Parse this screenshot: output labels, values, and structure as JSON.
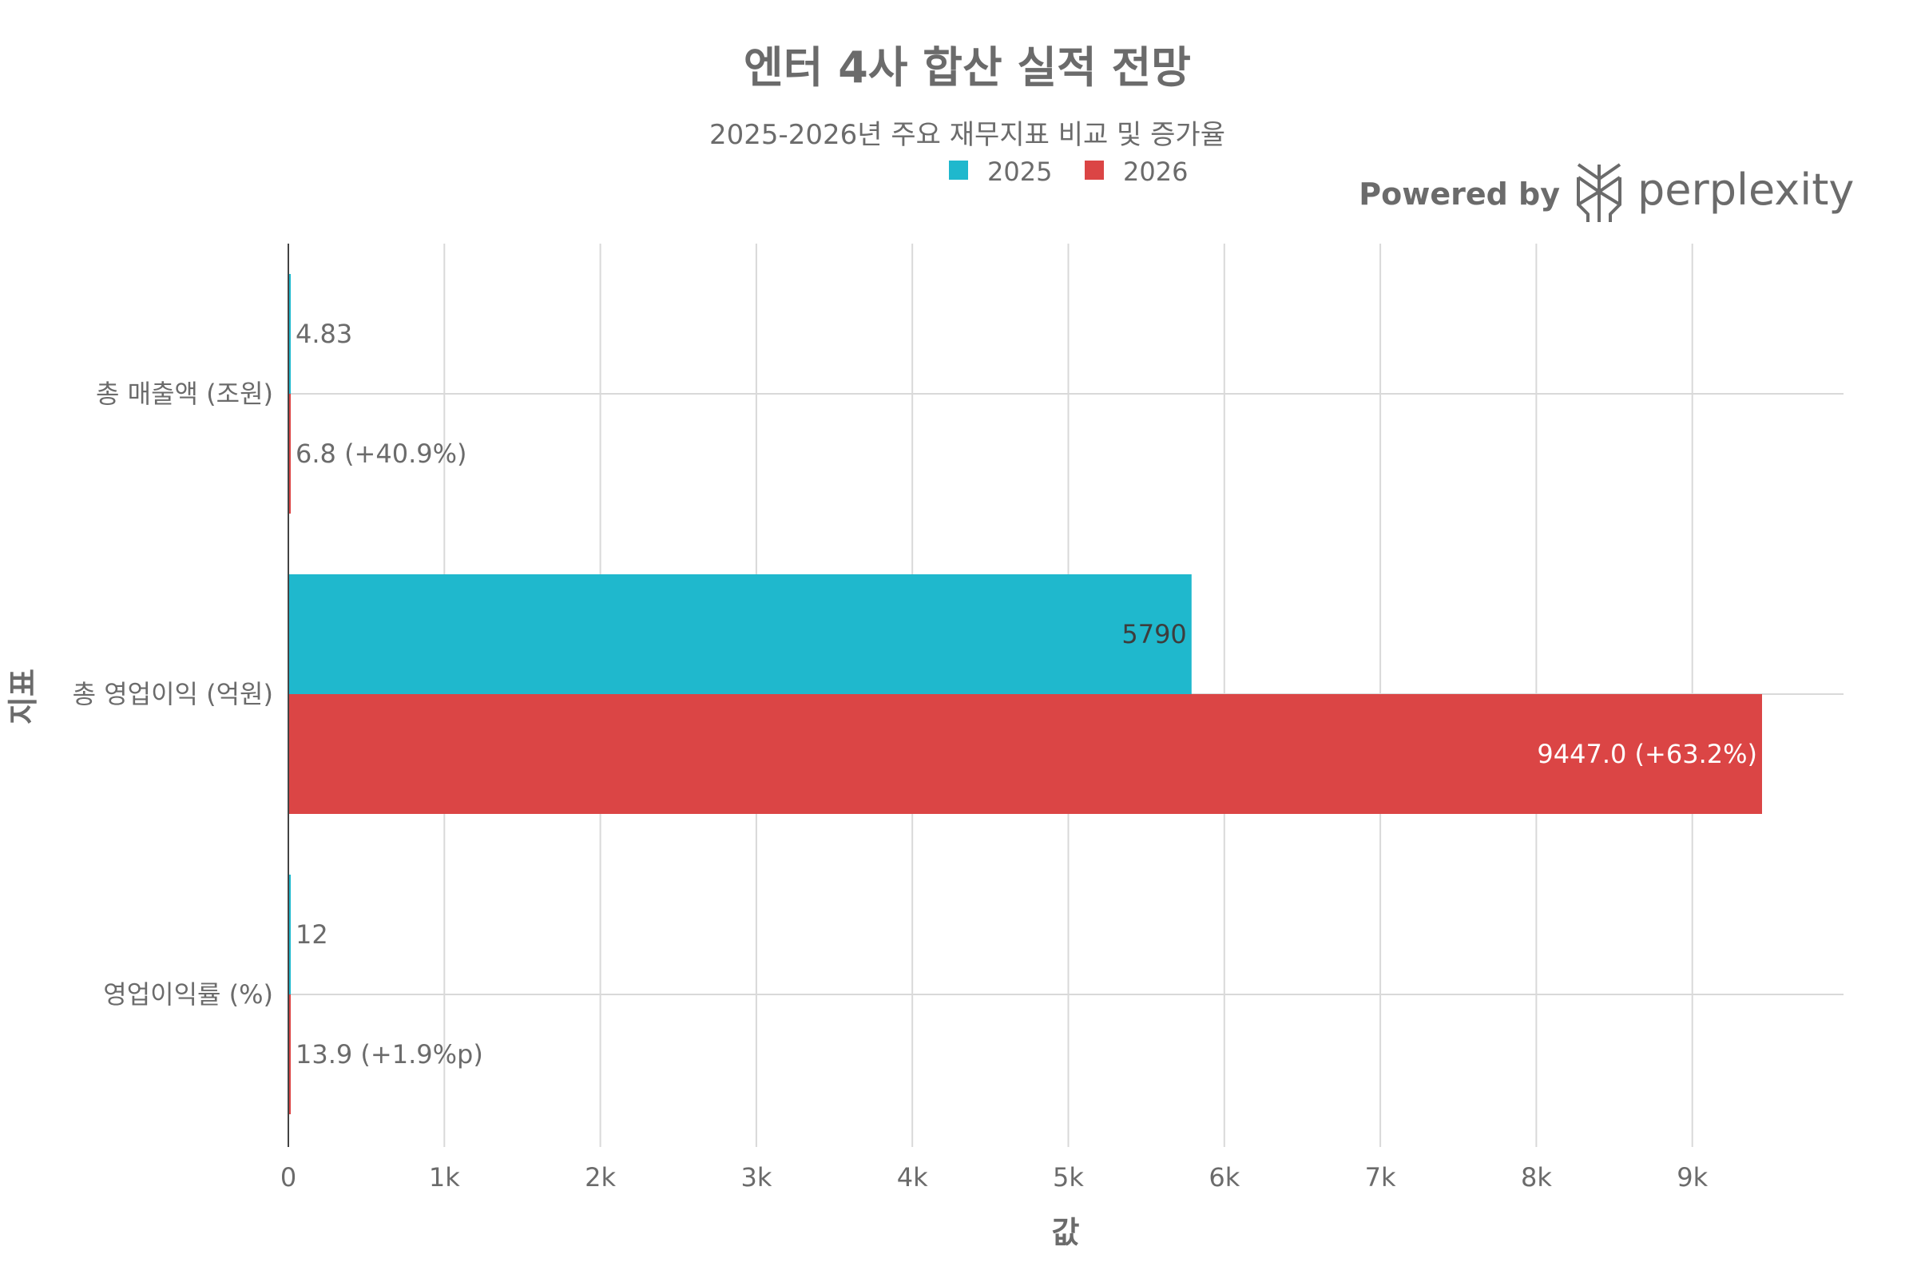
{
  "chart_data": {
    "type": "bar",
    "orientation": "horizontal",
    "title": "엔터 4사 합산 실적 전망",
    "subtitle": "2025-2026년 주요 재무지표 비교 및 증가율",
    "xlabel": "값",
    "ylabel": "지표",
    "xlim": [
      0,
      10000
    ],
    "xticks": [
      {
        "value": 0,
        "label": "0"
      },
      {
        "value": 1000,
        "label": "1k"
      },
      {
        "value": 2000,
        "label": "2k"
      },
      {
        "value": 3000,
        "label": "3k"
      },
      {
        "value": 4000,
        "label": "4k"
      },
      {
        "value": 5000,
        "label": "5k"
      },
      {
        "value": 6000,
        "label": "6k"
      },
      {
        "value": 7000,
        "label": "7k"
      },
      {
        "value": 8000,
        "label": "8k"
      },
      {
        "value": 9000,
        "label": "9k"
      }
    ],
    "grid": true,
    "legend_position": "top-center",
    "categories": [
      "총 매출액 (조원)",
      "총 영업이익 (억원)",
      "영업이익률 (%)"
    ],
    "series": [
      {
        "name": "2025",
        "color": "#1fb8cd",
        "values": [
          4.83,
          5790,
          12
        ],
        "labels": [
          "4.83",
          "5790",
          "12"
        ]
      },
      {
        "name": "2026",
        "color": "#db4545",
        "values": [
          6.8,
          9447.0,
          13.9
        ],
        "labels": [
          "6.8 (+40.9%)",
          "9447.0 (+63.2%)",
          "13.9 (+1.9%p)"
        ]
      }
    ]
  },
  "branding": {
    "powered_by": "Powered by",
    "brand": "perplexity",
    "logo_icon": "perplexity-logo-icon"
  }
}
